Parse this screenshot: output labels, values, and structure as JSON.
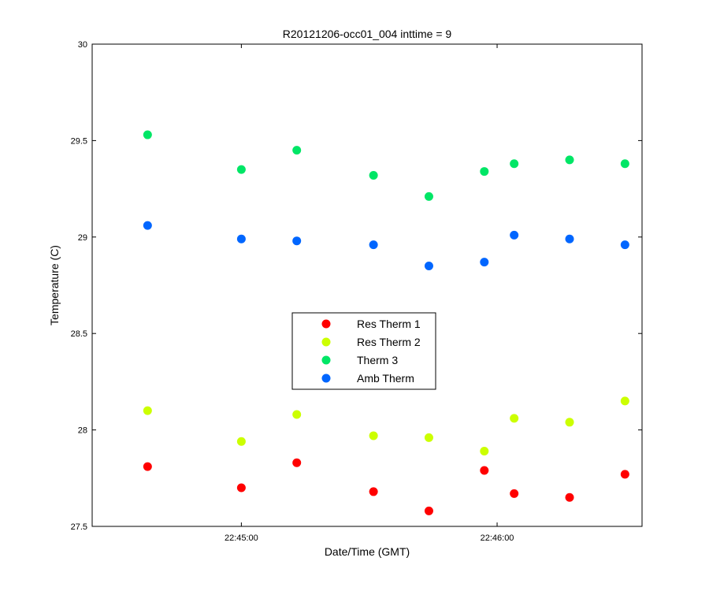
{
  "chart_data": {
    "type": "scatter",
    "title": "R20121206-occ01_004 inttime = 9",
    "xlabel": "Date/Time (GMT)",
    "ylabel": "Temperature (C)",
    "xlim": [
      "22:44:25",
      "22:46:34"
    ],
    "ylim": [
      27.5,
      30
    ],
    "x_ticks": [
      "22:45:00",
      "22:46:00"
    ],
    "y_ticks": [
      "27.5",
      "28",
      "28.5",
      "29",
      "29.5",
      "30"
    ],
    "x": [
      "22:44:38",
      "22:45:00",
      "22:45:13",
      "22:45:31",
      "22:45:52",
      "22:45:53",
      "22:46:04",
      "22:46:17",
      "22:46:30"
    ],
    "series": [
      {
        "name": "Res Therm 1",
        "color": "#ff0000",
        "x": [
          "22:44:38",
          "22:45:00",
          "22:45:13",
          "22:45:31",
          "22:45:44",
          "22:45:57",
          "22:46:04",
          "22:46:17",
          "22:46:30"
        ],
        "values": [
          27.81,
          27.7,
          27.83,
          27.68,
          27.58,
          27.79,
          27.67,
          27.65,
          27.77
        ]
      },
      {
        "name": "Res Therm 2",
        "color": "#ccff00",
        "x": [
          "22:44:38",
          "22:45:00",
          "22:45:13",
          "22:45:31",
          "22:45:44",
          "22:45:57",
          "22:46:04",
          "22:46:17",
          "22:46:30"
        ],
        "values": [
          28.1,
          27.94,
          28.08,
          27.97,
          27.96,
          27.89,
          28.06,
          28.04,
          28.15
        ]
      },
      {
        "name": "Therm 3",
        "color": "#00e666",
        "x": [
          "22:44:38",
          "22:45:00",
          "22:45:13",
          "22:45:31",
          "22:45:44",
          "22:45:57",
          "22:46:04",
          "22:46:17",
          "22:46:30"
        ],
        "values": [
          29.53,
          29.35,
          29.45,
          29.32,
          29.21,
          29.34,
          29.38,
          29.4,
          29.38
        ]
      },
      {
        "name": "Amb Therm",
        "color": "#0066ff",
        "x": [
          "22:44:38",
          "22:45:00",
          "22:45:13",
          "22:45:31",
          "22:45:44",
          "22:45:57",
          "22:46:04",
          "22:46:17",
          "22:46:30"
        ],
        "values": [
          29.06,
          28.99,
          28.98,
          28.96,
          28.85,
          28.87,
          29.01,
          28.99,
          28.96
        ]
      }
    ],
    "legend": {
      "position": "center"
    },
    "grid": false
  }
}
